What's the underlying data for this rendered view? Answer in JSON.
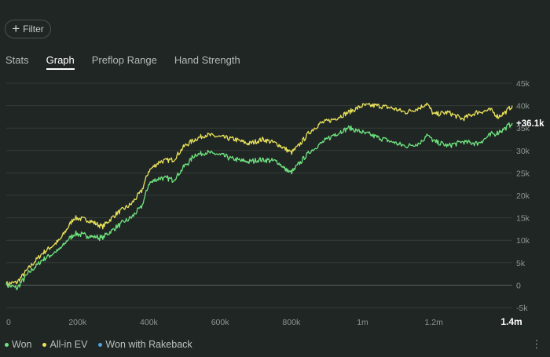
{
  "toolbar": {
    "filter_label": "Filter",
    "filter_icon": "plus-icon"
  },
  "tabs": [
    {
      "label": "Stats",
      "active": false
    },
    {
      "label": "Graph",
      "active": true
    },
    {
      "label": "Preflop Range",
      "active": false
    },
    {
      "label": "Hand Strength",
      "active": false
    }
  ],
  "legend": [
    {
      "label": "Won",
      "color": "#6fe37f"
    },
    {
      "label": "All-in EV",
      "color": "#e9e35a"
    },
    {
      "label": "Won with Rakeback",
      "color": "#4fa3e0"
    }
  ],
  "chart_data": {
    "type": "line",
    "title": "",
    "xlabel": "",
    "ylabel": "",
    "x_ticks": [
      "0",
      "200k",
      "400k",
      "600k",
      "800k",
      "1m",
      "1.2m",
      "1.4m"
    ],
    "y_ticks": [
      "45k",
      "40k",
      "35k",
      "30k",
      "25k",
      "20k",
      "15k",
      "10k",
      "5k",
      "0",
      "-5k"
    ],
    "xlim": [
      0,
      1420000
    ],
    "ylim": [
      -5000,
      45000
    ],
    "current_value_label": "+36.1k",
    "series": [
      {
        "name": "All-in EV",
        "color": "#e9e35a",
        "x": [
          0,
          30000,
          60000,
          100000,
          150000,
          190000,
          230000,
          270000,
          310000,
          350000,
          380000,
          400000,
          430000,
          470000,
          500000,
          530000,
          560000,
          600000,
          640000,
          680000,
          720000,
          760000,
          780000,
          800000,
          820000,
          850000,
          880000,
          920000,
          960000,
          1000000,
          1040000,
          1080000,
          1120000,
          1160000,
          1180000,
          1200000,
          1240000,
          1280000,
          1320000,
          1360000,
          1380000,
          1400000,
          1420000
        ],
        "y": [
          300,
          600,
          3500,
          7000,
          10000,
          15000,
          14500,
          13000,
          16000,
          18000,
          21000,
          25500,
          27500,
          28000,
          31000,
          32500,
          33500,
          33000,
          32500,
          31500,
          32500,
          31500,
          30500,
          29500,
          31000,
          34000,
          36000,
          37000,
          38500,
          40000,
          40000,
          39500,
          38500,
          39500,
          40500,
          38000,
          38500,
          37000,
          38500,
          39000,
          37500,
          38500,
          40000
        ]
      },
      {
        "name": "Won",
        "color": "#6fe37f",
        "x": [
          0,
          30000,
          60000,
          100000,
          150000,
          190000,
          230000,
          270000,
          310000,
          350000,
          380000,
          400000,
          430000,
          470000,
          500000,
          530000,
          560000,
          600000,
          640000,
          680000,
          720000,
          760000,
          780000,
          800000,
          820000,
          850000,
          880000,
          920000,
          960000,
          1000000,
          1040000,
          1080000,
          1120000,
          1160000,
          1180000,
          1200000,
          1240000,
          1280000,
          1320000,
          1360000,
          1380000,
          1400000,
          1420000
        ],
        "y": [
          0,
          -700,
          2500,
          5500,
          8000,
          11500,
          11000,
          10500,
          13000,
          15000,
          17500,
          22500,
          24000,
          23500,
          26500,
          29000,
          29500,
          29000,
          28000,
          27500,
          28000,
          27500,
          26000,
          25000,
          27000,
          29500,
          31500,
          33500,
          35000,
          34000,
          33000,
          32000,
          31000,
          31500,
          33500,
          32000,
          31000,
          32000,
          31500,
          33500,
          34000,
          35000,
          36100
        ]
      }
    ]
  }
}
